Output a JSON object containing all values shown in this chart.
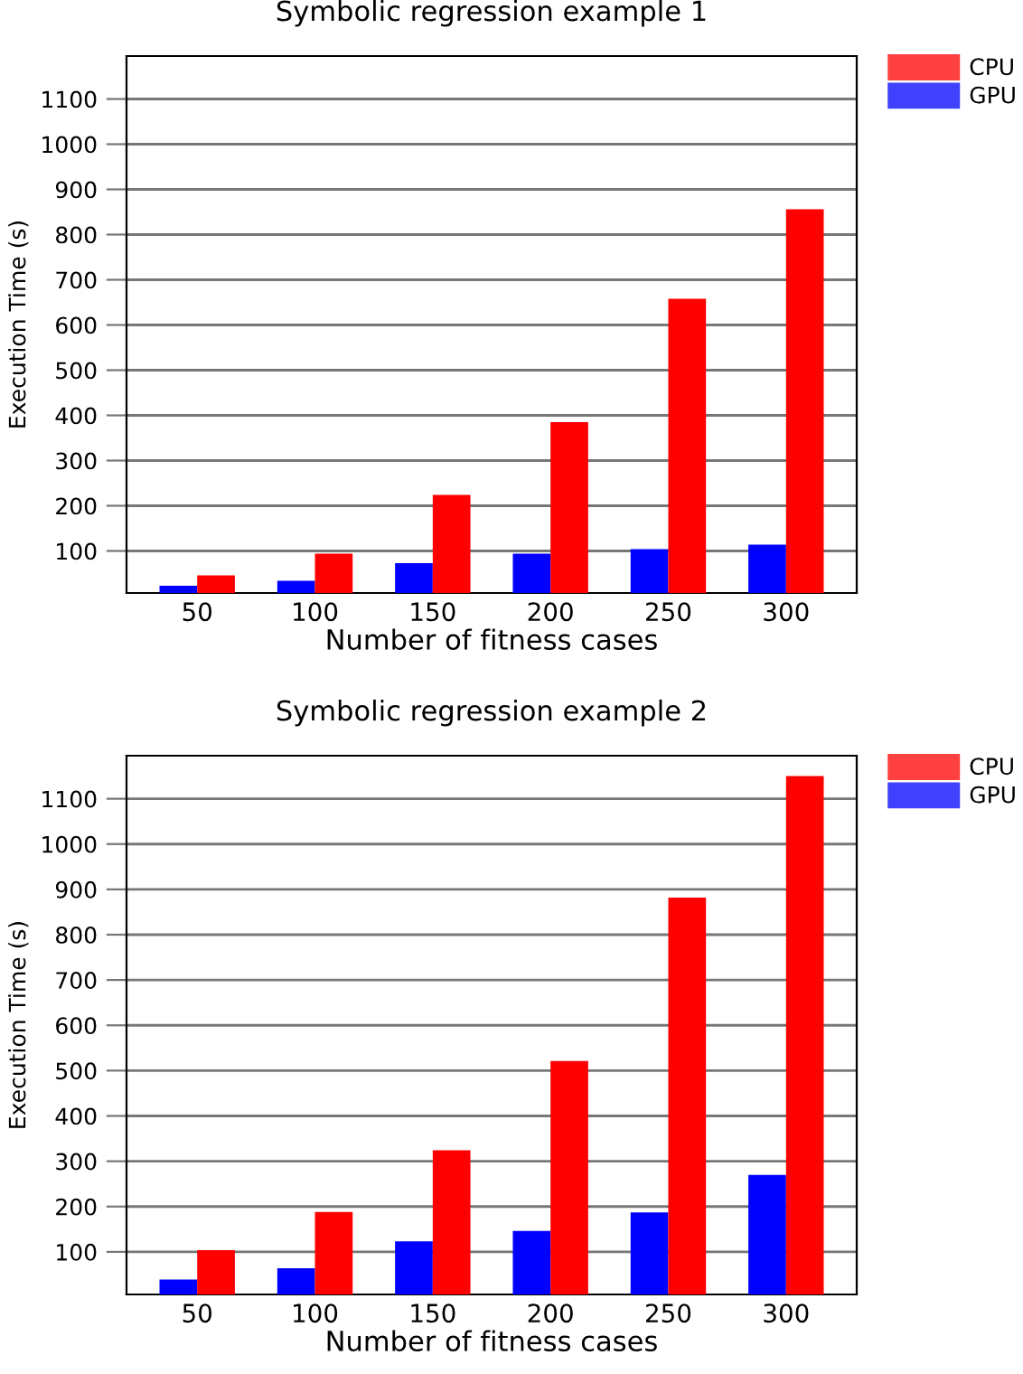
{
  "chart_data": [
    {
      "type": "bar",
      "title": "Symbolic regression example 1",
      "xlabel": "Number of fitness cases",
      "ylabel": "Execution Time (s)",
      "categories": [
        "50",
        "100",
        "150",
        "200",
        "250",
        "300"
      ],
      "series": [
        {
          "name": "GPU",
          "color": "#0000ff",
          "values": [
            23,
            34,
            73,
            94,
            104,
            114
          ]
        },
        {
          "name": "CPU",
          "color": "#ff0000",
          "values": [
            46,
            94,
            224,
            385,
            658,
            856
          ]
        }
      ],
      "ylim": [
        7,
        1195
      ],
      "yticks": [
        100,
        200,
        300,
        400,
        500,
        600,
        700,
        800,
        900,
        1000,
        1100
      ],
      "grid": "y",
      "legend": "top right"
    },
    {
      "type": "bar",
      "title": "Symbolic regression example 2",
      "xlabel": "Number of fitness cases",
      "ylabel": "Execution Time (s)",
      "categories": [
        "50",
        "100",
        "150",
        "200",
        "250",
        "300"
      ],
      "series": [
        {
          "name": "GPU",
          "color": "#0000ff",
          "values": [
            39,
            64,
            123,
            146,
            187,
            270
          ]
        },
        {
          "name": "CPU",
          "color": "#ff0000",
          "values": [
            104,
            188,
            324,
            521,
            882,
            1150
          ]
        }
      ],
      "ylim": [
        6,
        1195
      ],
      "yticks": [
        100,
        200,
        300,
        400,
        500,
        600,
        700,
        800,
        900,
        1000,
        1100
      ],
      "grid": "y",
      "legend": "top right"
    }
  ]
}
